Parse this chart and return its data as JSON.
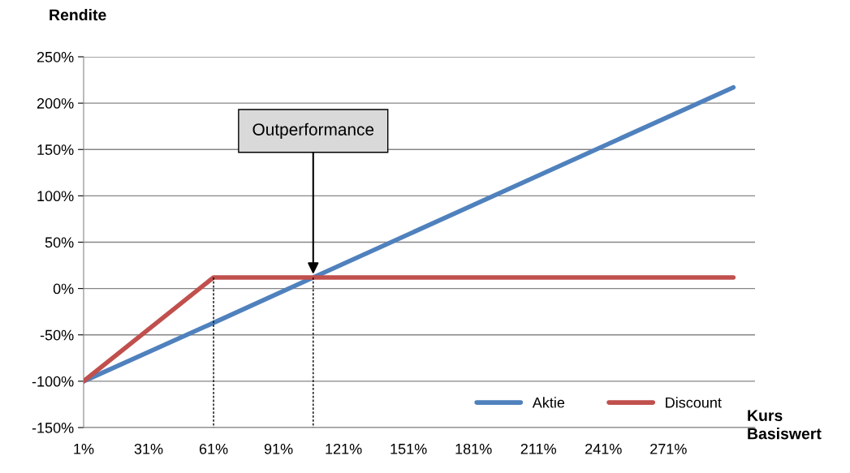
{
  "chart_data": {
    "type": "line",
    "ylabel": "Rendite",
    "xlabel": "Kurs\nBasiswert",
    "xlim": [
      1,
      311
    ],
    "xticks": [
      {
        "value": 1,
        "label": "1%"
      },
      {
        "value": 31,
        "label": "31%"
      },
      {
        "value": 61,
        "label": "61%"
      },
      {
        "value": 91,
        "label": "91%"
      },
      {
        "value": 121,
        "label": "121%"
      },
      {
        "value": 151,
        "label": "151%"
      },
      {
        "value": 181,
        "label": "181%"
      },
      {
        "value": 211,
        "label": "211%"
      },
      {
        "value": 241,
        "label": "241%"
      },
      {
        "value": 271,
        "label": "271%"
      }
    ],
    "ylim": [
      -150,
      250
    ],
    "yticks": [
      {
        "value": -150,
        "label": "-150%"
      },
      {
        "value": -100,
        "label": "-100%"
      },
      {
        "value": -50,
        "label": "-50%"
      },
      {
        "value": 0,
        "label": "0%"
      },
      {
        "value": 50,
        "label": "50%"
      },
      {
        "value": 100,
        "label": "100%"
      },
      {
        "value": 150,
        "label": "150%"
      },
      {
        "value": 200,
        "label": "200%"
      },
      {
        "value": 250,
        "label": "250%"
      }
    ],
    "grid": "y",
    "legend": "bottom right",
    "series": [
      {
        "name": "Aktie",
        "color": "#4f81bd",
        "x": [
          1,
          61,
          107,
          301
        ],
        "values": [
          -100,
          -37,
          12,
          217
        ]
      },
      {
        "name": "Discount",
        "color": "#c0504d",
        "x": [
          1,
          61,
          301
        ],
        "values": [
          -100,
          12,
          12
        ]
      },
      {
        "type": "line",
        "color": "#000000",
        "line_style": "dashed",
        "x": [
          61,
          61
        ],
        "values": [
          12,
          -150
        ]
      },
      {
        "type": "line",
        "color": "#000000",
        "line_style": "dashed",
        "x": [
          107,
          107
        ],
        "values": [
          12,
          -150
        ]
      }
    ],
    "annotations": [
      {
        "text": "Outperformance",
        "x": 107,
        "y": 12
      }
    ]
  }
}
